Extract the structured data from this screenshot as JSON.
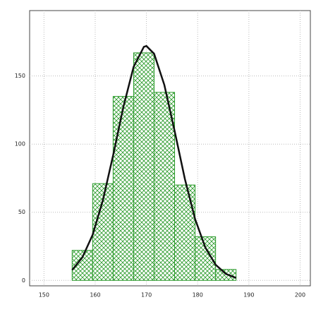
{
  "chart_data": {
    "type": "histogram",
    "bins": [
      155.5,
      159.5,
      163.5,
      167.5,
      171.5,
      175.5,
      179.5,
      183.5,
      187.5
    ],
    "values": [
      22,
      71,
      135,
      167,
      138,
      70,
      32,
      8
    ],
    "color": "#2a9a2a",
    "curve": {
      "type": "line",
      "color": "#111111",
      "x": [
        155.5,
        157.5,
        159.5,
        161.5,
        163.5,
        165.5,
        167.5,
        169.5,
        170,
        171.5,
        173.5,
        175.5,
        177.5,
        179.5,
        181.5,
        183.5,
        185.5,
        187.5
      ],
      "values": [
        7.6,
        16.9,
        33.4,
        58.8,
        91.8,
        127.3,
        156.7,
        171.4,
        172,
        166.3,
        143.4,
        109.7,
        74.5,
        45,
        24.1,
        11.5,
        4.8,
        1.8
      ]
    },
    "xlim": [
      147.2,
      202
    ],
    "ylim": [
      -4,
      198
    ],
    "xticks": [
      150,
      160,
      170,
      180,
      190,
      200
    ],
    "yticks": [
      0,
      50,
      100,
      150
    ],
    "grid": true
  }
}
